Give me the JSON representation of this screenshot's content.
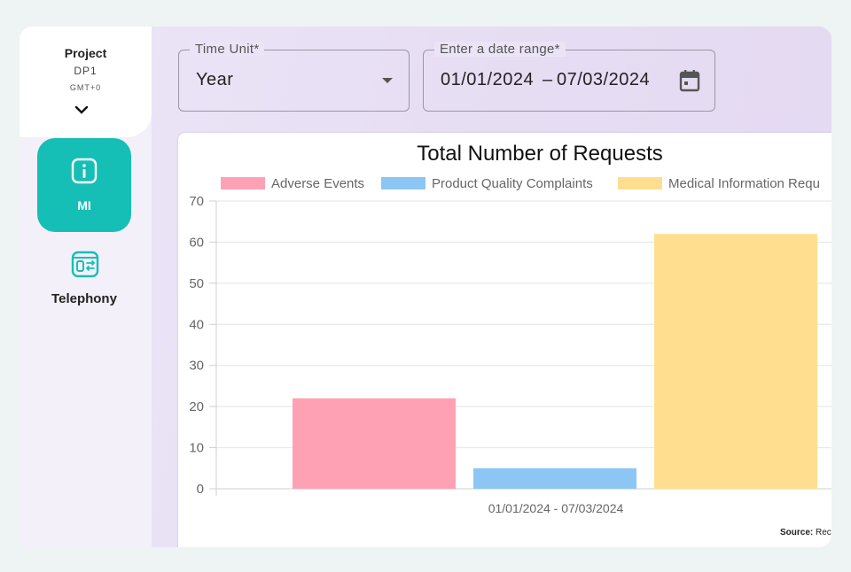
{
  "sidebar": {
    "project_title": "Project",
    "project_name": "DP1",
    "timezone": "GMT+0",
    "items": [
      {
        "label": "MI",
        "icon": "info-icon",
        "active": true
      },
      {
        "label": "Telephony",
        "icon": "telephony-icon",
        "active": false
      }
    ]
  },
  "filters": {
    "time_unit_label": "Time Unit*",
    "time_unit_value": "Year",
    "date_range_label": "Enter a date range*",
    "date_start": "01/01/2024",
    "date_separator": "–",
    "date_end": "07/03/2024"
  },
  "chart_data": {
    "type": "bar",
    "title": "Total Number of Requests",
    "categories": [
      "01/01/2024 - 07/03/2024"
    ],
    "series": [
      {
        "name": "Adverse Events",
        "values": [
          22
        ],
        "color": "#ffa1b5"
      },
      {
        "name": "Product Quality Complaints",
        "values": [
          5
        ],
        "color": "#8cc6f5"
      },
      {
        "name": "Medical Information Requ",
        "values": [
          62
        ],
        "color": "#ffdf8f"
      }
    ],
    "ylim": [
      0,
      70
    ],
    "yticks": [
      "0",
      "10",
      "20",
      "30",
      "40",
      "50",
      "60",
      "70"
    ],
    "legend": "top",
    "grid": true
  },
  "source": {
    "label": "Source:",
    "value": "Rec"
  },
  "colors": {
    "accent": "#16bfb6"
  }
}
